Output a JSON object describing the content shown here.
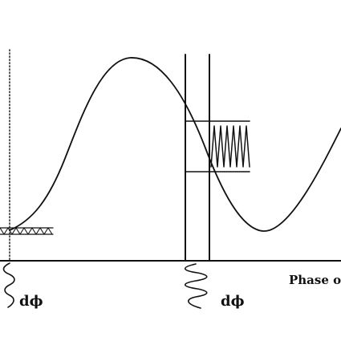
{
  "figure": {
    "axis_label": "Phase o",
    "delta_labels": [
      "dϕ",
      "dϕ"
    ],
    "ink_color": "#111111",
    "background_color": "#ffffff"
  }
}
